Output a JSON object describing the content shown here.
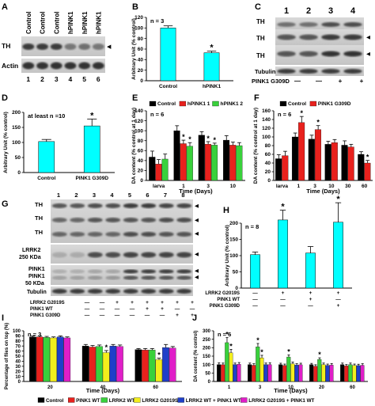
{
  "colors": {
    "cyan": "#00ffff",
    "black": "#000000",
    "red": "#e8211d",
    "green": "#39d13c",
    "yellow": "#f3ee1c",
    "blue": "#1f3fc9",
    "magenta": "#e01ec8"
  },
  "panel_letters": {
    "a": "A",
    "b": "B",
    "c": "C",
    "d": "D",
    "e": "E",
    "f": "F",
    "g": "G",
    "h": "H",
    "i": "I",
    "j": "J"
  },
  "sig_mark": "*",
  "blot_a": {
    "lane_labels": [
      "Control",
      "Control",
      "Control",
      "hPINK1",
      "hPINK1",
      "hPINK1"
    ],
    "lane_numbers": [
      "1",
      "2",
      "3",
      "4",
      "5",
      "6"
    ],
    "bands": [
      "TH",
      "Actin"
    ]
  },
  "blot_c": {
    "lane_numbers": [
      "1",
      "2",
      "3",
      "4"
    ],
    "bands": [
      "TH",
      "TH",
      "TH",
      "Tubulin"
    ],
    "condition_label": "PINK1 G309D",
    "condition_signs": [
      "—",
      "—",
      "+",
      "+"
    ]
  },
  "blot_g": {
    "lane_numbers": [
      "1",
      "2",
      "3",
      "4",
      "5",
      "6",
      "7",
      "8"
    ],
    "band_labels": [
      "TH",
      "TH",
      "TH",
      "LRRK2",
      "250 KDa",
      "PINK1",
      "PINK1",
      "50 KDa",
      "Tubulin"
    ],
    "rows": [
      {
        "label": "LRRK2 G2019S",
        "signs": [
          "—",
          "—",
          "+",
          "+",
          "+",
          "+",
          "+",
          "+"
        ]
      },
      {
        "label": "PINK1 WT",
        "signs": [
          "—",
          "—",
          "—",
          "—",
          "+",
          "+",
          "—",
          "—"
        ]
      },
      {
        "label": "PINK1 G309D",
        "signs": [
          "—",
          "—",
          "—",
          "—",
          "—",
          "—",
          "+",
          "+"
        ]
      }
    ]
  },
  "chart_data": [
    {
      "panel": "B",
      "type": "bar",
      "n_label": "n = 3",
      "ylabel": "Arbitrary Unit (% control)",
      "ylim": [
        0,
        120
      ],
      "yticks": [
        0,
        20,
        40,
        60,
        80,
        100,
        120
      ],
      "categories": [
        "Control",
        "hPINK1"
      ],
      "values": [
        100,
        53
      ],
      "errors": [
        4,
        3
      ],
      "significant": [
        false,
        true
      ]
    },
    {
      "panel": "D",
      "type": "bar",
      "n_label": "at least n =10",
      "ylabel": "Arbitrary Unit (% control)",
      "ylim": [
        0,
        200
      ],
      "yticks": [
        0,
        50,
        100,
        150,
        200
      ],
      "categories": [
        "Control",
        "PINK1 G309D"
      ],
      "values": [
        103,
        155
      ],
      "errors": [
        7,
        23
      ],
      "significant": [
        false,
        true
      ]
    },
    {
      "panel": "E",
      "type": "bar",
      "n_label": "n = 6",
      "ylabel": "DA content (% control at 1 day)",
      "xlabel": "Time (Days)",
      "ylim": [
        0,
        140
      ],
      "yticks": [
        0,
        20,
        40,
        60,
        80,
        100,
        120,
        140
      ],
      "categories": [
        "larva",
        "1",
        "3",
        "10"
      ],
      "series": [
        {
          "name": "Control",
          "color": "#000000",
          "values": [
            47,
            100,
            91,
            81
          ],
          "errors": [
            12,
            10,
            7,
            9
          ],
          "sig": [
            false,
            false,
            false,
            false
          ]
        },
        {
          "name": "hPINK1 1",
          "color": "#e8211d",
          "values": [
            33,
            74,
            73,
            71
          ],
          "errors": [
            9,
            7,
            5,
            6
          ],
          "sig": [
            false,
            true,
            true,
            false
          ]
        },
        {
          "name": "hPINK1 2",
          "color": "#39d13c",
          "values": [
            43,
            69,
            71,
            70
          ],
          "errors": [
            10,
            7,
            4,
            6
          ],
          "sig": [
            false,
            true,
            true,
            false
          ]
        }
      ]
    },
    {
      "panel": "F",
      "type": "bar",
      "n_label": "n = 6",
      "ylabel": "DA content (% control at 1 day)",
      "xlabel": "Time (Days)",
      "ylim": [
        0,
        160
      ],
      "yticks": [
        0,
        20,
        40,
        60,
        80,
        100,
        120,
        140,
        160
      ],
      "categories": [
        "larva",
        "1",
        "3",
        "10",
        "30",
        "60"
      ],
      "series": [
        {
          "name": "Control",
          "color": "#000000",
          "values": [
            50,
            100,
            95,
            83,
            81,
            60
          ],
          "errors": [
            9,
            9,
            9,
            7,
            10,
            6
          ],
          "sig": [
            false,
            false,
            false,
            false,
            false,
            false
          ]
        },
        {
          "name": "PINK1 G309D",
          "color": "#e8211d",
          "values": [
            57,
            133,
            117,
            87,
            77,
            40
          ],
          "errors": [
            10,
            14,
            9,
            7,
            6,
            6
          ],
          "sig": [
            false,
            true,
            true,
            false,
            false,
            true
          ]
        }
      ]
    },
    {
      "panel": "H",
      "type": "bar",
      "n_label": "n = 8",
      "ylabel": "Arbitrary Unit (% control)",
      "ylim": [
        0,
        200
      ],
      "yticks": [
        0,
        50,
        100,
        150,
        200
      ],
      "categories": [
        "1",
        "2",
        "3",
        "4"
      ],
      "values": [
        103,
        210,
        108,
        203
      ],
      "errors": [
        8,
        30,
        20,
        60
      ],
      "significant": [
        false,
        true,
        false,
        true
      ],
      "rows": [
        {
          "label": "LRRK2 G2019S",
          "signs": [
            "—",
            "+",
            "+",
            "+"
          ]
        },
        {
          "label": "PINK1 WT",
          "signs": [
            "—",
            "—",
            "+",
            "—"
          ]
        },
        {
          "label": "PINK1 G309D",
          "signs": [
            "—",
            "—",
            "—",
            "+"
          ]
        }
      ]
    },
    {
      "panel": "I",
      "type": "bar",
      "n_label": "n = 3",
      "ylabel": "Percentage of flies on top (%)",
      "xlabel": "Time (Days)",
      "ylim": [
        0,
        100
      ],
      "yticks": [
        0,
        10,
        20,
        30,
        40,
        50,
        60,
        70,
        80,
        90,
        100
      ],
      "categories": [
        "20",
        "40",
        "60"
      ],
      "series": [
        {
          "name": "Control",
          "color": "#000000",
          "values": [
            88,
            70,
            63
          ],
          "errors": [
            2,
            3,
            2
          ]
        },
        {
          "name": "PINK1 WT",
          "color": "#e8211d",
          "values": [
            88,
            68,
            62
          ],
          "errors": [
            2,
            3,
            3
          ]
        },
        {
          "name": "LRRK2 WT",
          "color": "#39d13c",
          "values": [
            87,
            69,
            62
          ],
          "errors": [
            2,
            3,
            3
          ]
        },
        {
          "name": "LRRK2 G2019S",
          "color": "#f3ee1c",
          "values": [
            86,
            57,
            43
          ],
          "errors": [
            2,
            4,
            3
          ],
          "sig": [
            false,
            true,
            true
          ]
        },
        {
          "name": "LRRK2 WT + PINK1 WT",
          "color": "#1f3fc9",
          "values": [
            88,
            70,
            67
          ],
          "errors": [
            2,
            3,
            6
          ]
        },
        {
          "name": "LRRK2 G2019S + PINK1 WT",
          "color": "#e01ec8",
          "values": [
            86,
            69,
            66
          ],
          "errors": [
            2,
            3,
            3
          ]
        }
      ]
    },
    {
      "panel": "J",
      "type": "bar",
      "n_label": "n = 6",
      "ylabel": "DA content (% control)",
      "xlabel": "Time (Days)",
      "ylim": [
        0,
        300
      ],
      "yticks": [
        0,
        50,
        100,
        150,
        200,
        250,
        300
      ],
      "categories": [
        "1",
        "3",
        "10",
        "20",
        "60"
      ],
      "series": [
        {
          "name": "Control",
          "color": "#000000",
          "values": [
            100,
            100,
            100,
            100,
            100
          ],
          "errors": [
            10,
            9,
            8,
            7,
            9
          ]
        },
        {
          "name": "PINK1 WT",
          "color": "#e8211d",
          "values": [
            99,
            96,
            95,
            90,
            92
          ],
          "errors": [
            10,
            9,
            8,
            9,
            8
          ]
        },
        {
          "name": "LRRK2 WT",
          "color": "#39d13c",
          "values": [
            230,
            205,
            145,
            130,
            100
          ],
          "errors": [
            30,
            20,
            12,
            10,
            9
          ],
          "sig": [
            true,
            true,
            true,
            true,
            false
          ]
        },
        {
          "name": "LRRK2 G2019S",
          "color": "#f3ee1c",
          "values": [
            170,
            140,
            105,
            100,
            95
          ],
          "errors": [
            20,
            15,
            10,
            9,
            8
          ],
          "sig": [
            true,
            true,
            false,
            false,
            false
          ]
        },
        {
          "name": "LRRK2 WT + PINK1 WT",
          "color": "#1f3fc9",
          "values": [
            100,
            100,
            97,
            95,
            94
          ],
          "errors": [
            9,
            9,
            8,
            8,
            8
          ]
        },
        {
          "name": "LRRK2 G2019S + PINK1 WT",
          "color": "#e01ec8",
          "values": [
            102,
            100,
            99,
            97,
            96
          ],
          "errors": [
            10,
            10,
            9,
            9,
            9
          ]
        }
      ]
    }
  ]
}
